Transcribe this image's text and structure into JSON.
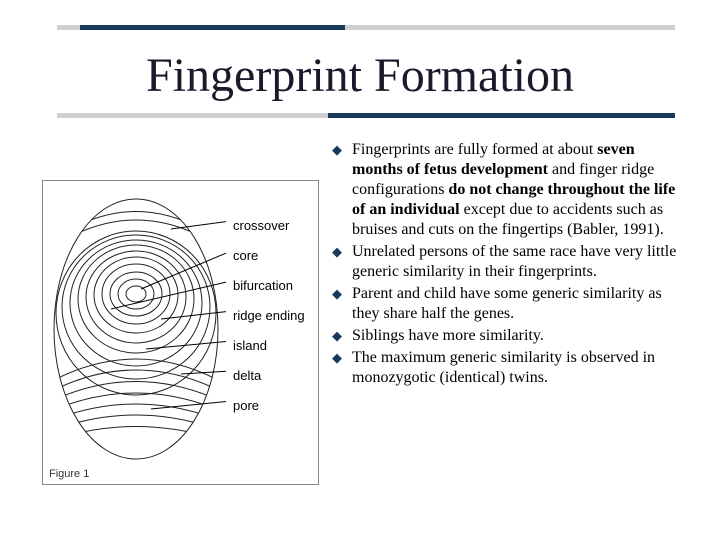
{
  "title": "Fingerprint Formation",
  "colors": {
    "accent": "#1a3a5c",
    "bar_bg": "#d0d0d0",
    "text": "#000000",
    "title_color": "#1a1a2a"
  },
  "figure": {
    "caption": "Figure 1",
    "labels": [
      "crossover",
      "core",
      "bifurcation",
      "ridge ending",
      "island",
      "delta",
      "pore"
    ]
  },
  "bullets": [
    {
      "html": "Fingerprints are fully formed at about <b>seven months of fetus development</b> and finger ridge configurations <b>do not change throughout the life of an individual</b> except due to accidents such as bruises and cuts on the fingertips (Babler, 1991)."
    },
    {
      "html": "Unrelated persons of the same race have very little generic similarity in their fingerprints."
    },
    {
      "html": "Parent and child have some generic similarity as they share half the genes."
    },
    {
      "html": "Siblings have more similarity."
    },
    {
      "html": "The maximum generic similarity is observed in monozygotic (identical) twins."
    }
  ]
}
